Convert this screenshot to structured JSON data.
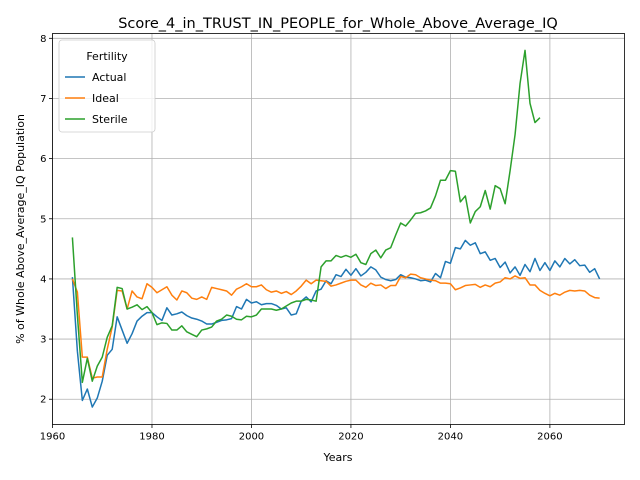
{
  "chart_data": {
    "type": "line",
    "title": "Score_4_in_TRUST_IN_PEOPLE_for_Whole_Above_Average_IQ",
    "xlabel": "Years",
    "ylabel": "% of Whole Above_Average_IQ Population",
    "xlim": [
      1960,
      2075
    ],
    "ylim": [
      1.58,
      8.08
    ],
    "xticks": [
      1960,
      1980,
      2000,
      2020,
      2040,
      2060
    ],
    "yticks": [
      2,
      3,
      4,
      5,
      6,
      7,
      8
    ],
    "grid": true,
    "legend": {
      "title": "Fertility",
      "placement": "top-left"
    },
    "series": [
      {
        "name": "Actual",
        "color": "#1f77b4",
        "points": [
          [
            1964,
            4.03
          ],
          [
            1965,
            2.8
          ],
          [
            1966,
            1.98
          ],
          [
            1967,
            2.17
          ],
          [
            1968,
            1.87
          ],
          [
            1969,
            2.02
          ],
          [
            1970,
            2.3
          ],
          [
            1971,
            2.73
          ],
          [
            1972,
            2.83
          ],
          [
            1973,
            3.37
          ],
          [
            1974,
            3.15
          ],
          [
            1975,
            2.93
          ],
          [
            1976,
            3.09
          ],
          [
            1977,
            3.3
          ],
          [
            1978,
            3.38
          ],
          [
            1979,
            3.44
          ],
          [
            1980,
            3.44
          ],
          [
            1981,
            3.37
          ],
          [
            1982,
            3.31
          ],
          [
            1983,
            3.52
          ],
          [
            1984,
            3.4
          ],
          [
            1985,
            3.42
          ],
          [
            1986,
            3.45
          ],
          [
            1987,
            3.39
          ],
          [
            1988,
            3.35
          ],
          [
            1989,
            3.33
          ],
          [
            1990,
            3.3
          ],
          [
            1991,
            3.25
          ],
          [
            1992,
            3.25
          ],
          [
            1993,
            3.28
          ],
          [
            1994,
            3.31
          ],
          [
            1995,
            3.32
          ],
          [
            1996,
            3.34
          ],
          [
            1997,
            3.54
          ],
          [
            1998,
            3.5
          ],
          [
            1999,
            3.66
          ],
          [
            2000,
            3.6
          ],
          [
            2001,
            3.62
          ],
          [
            2002,
            3.57
          ],
          [
            2003,
            3.59
          ],
          [
            2004,
            3.59
          ],
          [
            2005,
            3.56
          ],
          [
            2006,
            3.5
          ],
          [
            2007,
            3.52
          ],
          [
            2008,
            3.4
          ],
          [
            2009,
            3.42
          ],
          [
            2010,
            3.63
          ],
          [
            2011,
            3.7
          ],
          [
            2012,
            3.62
          ],
          [
            2013,
            3.8
          ],
          [
            2014,
            3.83
          ],
          [
            2015,
            3.97
          ],
          [
            2016,
            3.92
          ],
          [
            2017,
            4.07
          ],
          [
            2018,
            4.04
          ],
          [
            2019,
            4.16
          ],
          [
            2020,
            4.06
          ],
          [
            2021,
            4.17
          ],
          [
            2022,
            4.05
          ],
          [
            2023,
            4.11
          ],
          [
            2024,
            4.2
          ],
          [
            2025,
            4.15
          ],
          [
            2026,
            4.03
          ],
          [
            2027,
            3.99
          ],
          [
            2028,
            3.97
          ],
          [
            2029,
            3.99
          ],
          [
            2030,
            4.07
          ],
          [
            2031,
            4.03
          ],
          [
            2032,
            4.02
          ],
          [
            2033,
            4.0
          ],
          [
            2034,
            3.97
          ],
          [
            2035,
            3.98
          ],
          [
            2036,
            3.95
          ],
          [
            2037,
            4.09
          ],
          [
            2038,
            4.02
          ],
          [
            2039,
            4.29
          ],
          [
            2040,
            4.26
          ],
          [
            2041,
            4.52
          ],
          [
            2042,
            4.5
          ],
          [
            2043,
            4.64
          ],
          [
            2044,
            4.56
          ],
          [
            2045,
            4.6
          ],
          [
            2046,
            4.42
          ],
          [
            2047,
            4.45
          ],
          [
            2048,
            4.31
          ],
          [
            2049,
            4.34
          ],
          [
            2050,
            4.19
          ],
          [
            2051,
            4.28
          ],
          [
            2052,
            4.1
          ],
          [
            2053,
            4.2
          ],
          [
            2054,
            4.06
          ],
          [
            2055,
            4.24
          ],
          [
            2056,
            4.12
          ],
          [
            2057,
            4.34
          ],
          [
            2058,
            4.14
          ],
          [
            2059,
            4.27
          ],
          [
            2060,
            4.14
          ],
          [
            2061,
            4.3
          ],
          [
            2062,
            4.2
          ],
          [
            2063,
            4.34
          ],
          [
            2064,
            4.25
          ],
          [
            2065,
            4.32
          ],
          [
            2066,
            4.22
          ],
          [
            2067,
            4.23
          ],
          [
            2068,
            4.11
          ],
          [
            2069,
            4.17
          ],
          [
            2070,
            4.0
          ]
        ]
      },
      {
        "name": "Ideal",
        "color": "#ff7f0e",
        "points": [
          [
            1964,
            4.0
          ],
          [
            1965,
            3.78
          ],
          [
            1966,
            2.7
          ],
          [
            1967,
            2.7
          ],
          [
            1968,
            2.35
          ],
          [
            1969,
            2.37
          ],
          [
            1970,
            2.37
          ],
          [
            1971,
            2.83
          ],
          [
            1972,
            3.2
          ],
          [
            1973,
            3.81
          ],
          [
            1974,
            3.8
          ],
          [
            1975,
            3.5
          ],
          [
            1976,
            3.8
          ],
          [
            1977,
            3.7
          ],
          [
            1978,
            3.67
          ],
          [
            1979,
            3.92
          ],
          [
            1980,
            3.86
          ],
          [
            1981,
            3.77
          ],
          [
            1982,
            3.82
          ],
          [
            1983,
            3.87
          ],
          [
            1984,
            3.73
          ],
          [
            1985,
            3.65
          ],
          [
            1986,
            3.8
          ],
          [
            1987,
            3.77
          ],
          [
            1988,
            3.68
          ],
          [
            1989,
            3.66
          ],
          [
            1990,
            3.7
          ],
          [
            1991,
            3.66
          ],
          [
            1992,
            3.86
          ],
          [
            1993,
            3.84
          ],
          [
            1994,
            3.82
          ],
          [
            1995,
            3.8
          ],
          [
            1996,
            3.73
          ],
          [
            1997,
            3.83
          ],
          [
            1998,
            3.87
          ],
          [
            1999,
            3.92
          ],
          [
            2000,
            3.87
          ],
          [
            2001,
            3.87
          ],
          [
            2002,
            3.9
          ],
          [
            2003,
            3.82
          ],
          [
            2004,
            3.78
          ],
          [
            2005,
            3.8
          ],
          [
            2006,
            3.76
          ],
          [
            2007,
            3.79
          ],
          [
            2008,
            3.74
          ],
          [
            2009,
            3.8
          ],
          [
            2010,
            3.88
          ],
          [
            2011,
            3.98
          ],
          [
            2012,
            3.92
          ],
          [
            2013,
            3.98
          ],
          [
            2014,
            3.97
          ],
          [
            2015,
            3.96
          ],
          [
            2016,
            3.88
          ],
          [
            2017,
            3.9
          ],
          [
            2018,
            3.93
          ],
          [
            2019,
            3.96
          ],
          [
            2020,
            3.98
          ],
          [
            2021,
            3.98
          ],
          [
            2022,
            3.9
          ],
          [
            2023,
            3.86
          ],
          [
            2024,
            3.93
          ],
          [
            2025,
            3.89
          ],
          [
            2026,
            3.9
          ],
          [
            2027,
            3.84
          ],
          [
            2028,
            3.89
          ],
          [
            2029,
            3.89
          ],
          [
            2030,
            4.04
          ],
          [
            2031,
            4.02
          ],
          [
            2032,
            4.08
          ],
          [
            2033,
            4.07
          ],
          [
            2034,
            4.02
          ],
          [
            2035,
            4.0
          ],
          [
            2036,
            3.98
          ],
          [
            2037,
            3.97
          ],
          [
            2038,
            3.93
          ],
          [
            2039,
            3.93
          ],
          [
            2040,
            3.92
          ],
          [
            2041,
            3.82
          ],
          [
            2042,
            3.85
          ],
          [
            2043,
            3.89
          ],
          [
            2044,
            3.9
          ],
          [
            2045,
            3.91
          ],
          [
            2046,
            3.86
          ],
          [
            2047,
            3.9
          ],
          [
            2048,
            3.87
          ],
          [
            2049,
            3.93
          ],
          [
            2050,
            3.95
          ],
          [
            2051,
            4.02
          ],
          [
            2052,
            4.0
          ],
          [
            2053,
            4.05
          ],
          [
            2054,
            4.01
          ],
          [
            2055,
            4.02
          ],
          [
            2056,
            3.9
          ],
          [
            2057,
            3.9
          ],
          [
            2058,
            3.81
          ],
          [
            2059,
            3.76
          ],
          [
            2060,
            3.72
          ],
          [
            2061,
            3.76
          ],
          [
            2062,
            3.73
          ],
          [
            2063,
            3.78
          ],
          [
            2064,
            3.81
          ],
          [
            2065,
            3.8
          ],
          [
            2066,
            3.81
          ],
          [
            2067,
            3.8
          ],
          [
            2068,
            3.73
          ],
          [
            2069,
            3.69
          ],
          [
            2070,
            3.68
          ]
        ]
      },
      {
        "name": "Sterile",
        "color": "#2ca02c",
        "points": [
          [
            1964,
            4.69
          ],
          [
            1965,
            3.4
          ],
          [
            1966,
            2.28
          ],
          [
            1967,
            2.68
          ],
          [
            1968,
            2.3
          ],
          [
            1969,
            2.55
          ],
          [
            1970,
            2.7
          ],
          [
            1971,
            3.03
          ],
          [
            1972,
            3.22
          ],
          [
            1973,
            3.86
          ],
          [
            1974,
            3.84
          ],
          [
            1975,
            3.5
          ],
          [
            1976,
            3.53
          ],
          [
            1977,
            3.57
          ],
          [
            1978,
            3.49
          ],
          [
            1979,
            3.54
          ],
          [
            1980,
            3.44
          ],
          [
            1981,
            3.24
          ],
          [
            1982,
            3.27
          ],
          [
            1983,
            3.26
          ],
          [
            1984,
            3.15
          ],
          [
            1985,
            3.15
          ],
          [
            1986,
            3.22
          ],
          [
            1987,
            3.12
          ],
          [
            1988,
            3.08
          ],
          [
            1989,
            3.04
          ],
          [
            1990,
            3.15
          ],
          [
            1991,
            3.17
          ],
          [
            1992,
            3.2
          ],
          [
            1993,
            3.3
          ],
          [
            1994,
            3.33
          ],
          [
            1995,
            3.4
          ],
          [
            1996,
            3.38
          ],
          [
            1997,
            3.33
          ],
          [
            1998,
            3.32
          ],
          [
            1999,
            3.38
          ],
          [
            2000,
            3.37
          ],
          [
            2001,
            3.4
          ],
          [
            2002,
            3.5
          ],
          [
            2003,
            3.5
          ],
          [
            2004,
            3.5
          ],
          [
            2005,
            3.48
          ],
          [
            2006,
            3.5
          ],
          [
            2007,
            3.55
          ],
          [
            2008,
            3.6
          ],
          [
            2009,
            3.63
          ],
          [
            2010,
            3.63
          ],
          [
            2011,
            3.66
          ],
          [
            2012,
            3.65
          ],
          [
            2013,
            3.63
          ],
          [
            2014,
            4.2
          ],
          [
            2015,
            4.3
          ],
          [
            2016,
            4.3
          ],
          [
            2017,
            4.39
          ],
          [
            2018,
            4.36
          ],
          [
            2019,
            4.39
          ],
          [
            2020,
            4.36
          ],
          [
            2021,
            4.41
          ],
          [
            2022,
            4.27
          ],
          [
            2023,
            4.24
          ],
          [
            2024,
            4.42
          ],
          [
            2025,
            4.48
          ],
          [
            2026,
            4.35
          ],
          [
            2027,
            4.48
          ],
          [
            2028,
            4.52
          ],
          [
            2029,
            4.73
          ],
          [
            2030,
            4.93
          ],
          [
            2031,
            4.88
          ],
          [
            2032,
            4.98
          ],
          [
            2033,
            5.09
          ],
          [
            2034,
            5.1
          ],
          [
            2035,
            5.13
          ],
          [
            2036,
            5.18
          ],
          [
            2037,
            5.38
          ],
          [
            2038,
            5.64
          ],
          [
            2039,
            5.64
          ],
          [
            2040,
            5.8
          ],
          [
            2041,
            5.79
          ],
          [
            2042,
            5.28
          ],
          [
            2043,
            5.38
          ],
          [
            2044,
            4.93
          ],
          [
            2045,
            5.12
          ],
          [
            2046,
            5.2
          ],
          [
            2047,
            5.47
          ],
          [
            2048,
            5.16
          ],
          [
            2049,
            5.55
          ],
          [
            2050,
            5.5
          ],
          [
            2051,
            5.25
          ],
          [
            2052,
            5.8
          ],
          [
            2053,
            6.4
          ],
          [
            2054,
            7.25
          ],
          [
            2055,
            7.8
          ],
          [
            2056,
            6.92
          ],
          [
            2057,
            6.6
          ],
          [
            2058,
            6.68
          ]
        ]
      }
    ]
  }
}
